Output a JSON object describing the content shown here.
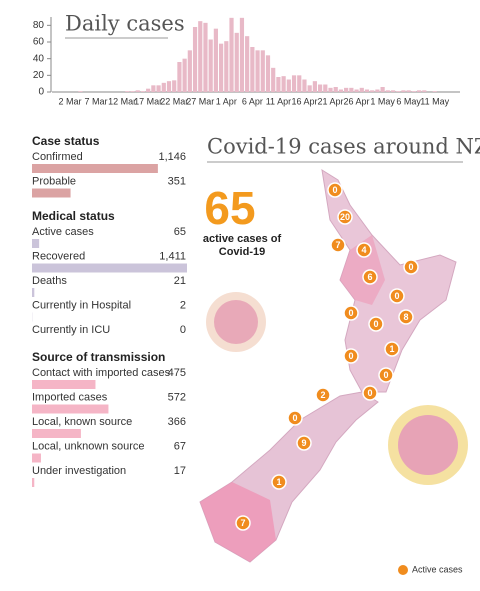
{
  "chart_data": [
    {
      "type": "bar",
      "title": "Daily cases",
      "categories": [
        null,
        "2 Mar",
        null,
        null,
        null,
        null,
        "7 Mar",
        null,
        null,
        null,
        null,
        "12 Mar",
        null,
        null,
        null,
        null,
        "17 Mar",
        null,
        null,
        null,
        null,
        "22 Mar",
        null,
        null,
        null,
        null,
        "27 Mar",
        null,
        null,
        null,
        null,
        "1 Apr",
        null,
        null,
        null,
        null,
        "6 Apr",
        null,
        null,
        null,
        null,
        "11 Apr",
        null,
        null,
        null,
        null,
        "16 Apr",
        null,
        null,
        null,
        null,
        "21 Apr",
        null,
        null,
        null,
        null,
        "26 Apr",
        null,
        null,
        null,
        null,
        "1 May",
        null,
        null,
        null,
        null,
        "6 May",
        null,
        null,
        null,
        null,
        "11 May",
        null,
        null,
        null
      ],
      "values": [
        0,
        0,
        0,
        1,
        0,
        0,
        0,
        0,
        0,
        0,
        0,
        0,
        1,
        1,
        2,
        1,
        4,
        8,
        8,
        11,
        13,
        14,
        36,
        40,
        50,
        78,
        85,
        83,
        63,
        76,
        58,
        61,
        89,
        71,
        89,
        67,
        54,
        50,
        50,
        44,
        29,
        18,
        19,
        15,
        20,
        20,
        15,
        8,
        13,
        9,
        9,
        5,
        6,
        3,
        5,
        5,
        3,
        5,
        3,
        2,
        3,
        6,
        2,
        2,
        1,
        2,
        2,
        1,
        2,
        2,
        0,
        1,
        0,
        0,
        0
      ],
      "color": "#e8b9c7",
      "ylim": [
        0,
        90
      ],
      "yticks": [
        0,
        20,
        40,
        60,
        80
      ]
    },
    {
      "type": "hbar",
      "title": "Case status",
      "categories": [
        "Confirmed",
        "Probable"
      ],
      "values": [
        1146,
        351
      ],
      "value_labels": [
        "1,146",
        "351"
      ],
      "color": "#dba3a3",
      "xlim": [
        0,
        1411
      ]
    },
    {
      "type": "hbar",
      "title": "Medical status",
      "categories": [
        "Active cases",
        "Recovered",
        "Deaths",
        "Currently in Hospital",
        "Currently in ICU"
      ],
      "values": [
        65,
        1411,
        21,
        2,
        0
      ],
      "value_labels": [
        "65",
        "1,411",
        "21",
        "2",
        "0"
      ],
      "color": "#cbc4da",
      "xlim": [
        0,
        1411
      ]
    },
    {
      "type": "hbar",
      "title": "Source of transmission",
      "categories": [
        "Contact with imported cases",
        "Imported cases",
        "Local, known source",
        "Local, unknown source",
        "Under investigation"
      ],
      "values": [
        475,
        572,
        366,
        67,
        17
      ],
      "value_labels": [
        "475",
        "572",
        "366",
        "67",
        "17"
      ],
      "color": "#f5b5c6",
      "xlim": [
        0,
        1160
      ]
    }
  ],
  "map": {
    "title": "Covid-19 cases around NZ",
    "active_count": "65",
    "active_label": [
      "active cases of",
      "Covid-19"
    ],
    "markers": [
      0,
      20,
      7,
      4,
      6,
      0,
      0,
      0,
      0,
      8,
      1,
      0,
      0,
      0,
      2,
      0,
      9,
      1,
      7
    ],
    "legend": "Active cases",
    "marker_color": "#f08c1e"
  }
}
